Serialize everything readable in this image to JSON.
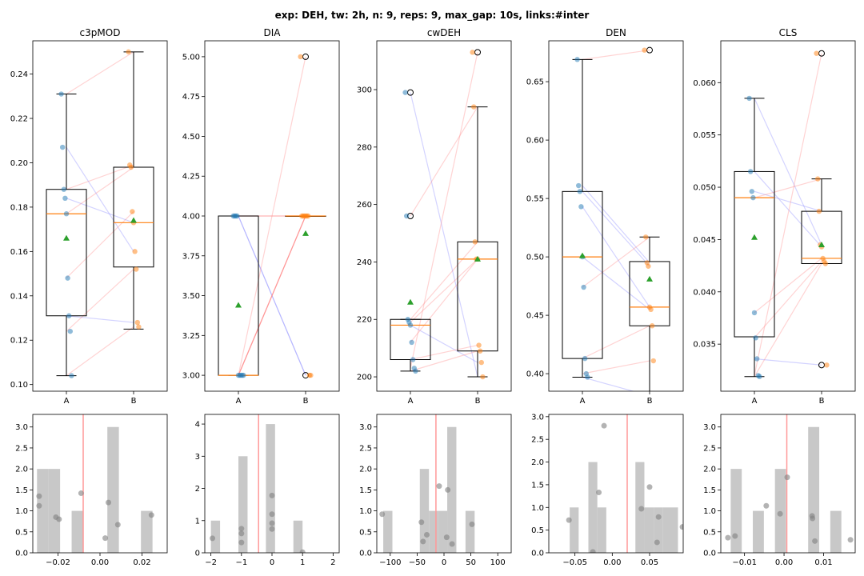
{
  "figure": {
    "suptitle": "exp: DEH, tw: 2h, n: 9, reps: 9, max_gap: 10s, links:#inter"
  },
  "colors": {
    "groupA": "#1f77b4",
    "groupB": "#ff7f0e",
    "median": "#ff7f0e",
    "mean": "#2ca02c",
    "link_up": "#ff8080",
    "link_down": "#8080ff",
    "hist": "#c8c8c8",
    "zero_line": "#ff9999",
    "dots": "#808080"
  },
  "chart_data": [
    {
      "type": "box",
      "title": "c3pMOD",
      "categories": [
        "A",
        "B"
      ],
      "ylim": [
        0.097,
        0.255
      ],
      "yticks": [
        0.1,
        0.12,
        0.14,
        0.16,
        0.18,
        0.2,
        0.22,
        0.24
      ],
      "ytick_labels": [
        "0.10",
        "0.12",
        "0.14",
        "0.16",
        "0.18",
        "0.20",
        "0.22",
        "0.24"
      ],
      "A": {
        "values": [
          0.231,
          0.207,
          0.188,
          0.184,
          0.177,
          0.148,
          0.131,
          0.124,
          0.104
        ],
        "whisker_low": 0.104,
        "q1": 0.131,
        "median": 0.177,
        "q3": 0.188,
        "whisker_high": 0.231,
        "mean": 0.166,
        "outliers": []
      },
      "B": {
        "values": [
          0.25,
          0.199,
          0.198,
          0.178,
          0.173,
          0.16,
          0.152,
          0.128,
          0.126
        ],
        "whisker_low": 0.125,
        "q1": 0.153,
        "median": 0.173,
        "q3": 0.198,
        "whisker_high": 0.25,
        "mean": 0.174,
        "outliers": []
      },
      "pairs": [
        [
          0.231,
          0.25
        ],
        [
          0.207,
          0.16
        ],
        [
          0.188,
          0.199
        ],
        [
          0.184,
          0.173
        ],
        [
          0.177,
          0.198
        ],
        [
          0.148,
          0.178
        ],
        [
          0.131,
          0.128
        ],
        [
          0.124,
          0.152
        ],
        [
          0.104,
          0.126
        ]
      ]
    },
    {
      "type": "box",
      "title": "DIA",
      "categories": [
        "A",
        "B"
      ],
      "ylim": [
        2.9,
        5.1
      ],
      "yticks": [
        3.0,
        3.25,
        3.5,
        3.75,
        4.0,
        4.25,
        4.5,
        4.75,
        5.0
      ],
      "ytick_labels": [
        "3.00",
        "3.25",
        "3.50",
        "3.75",
        "4.00",
        "4.25",
        "4.50",
        "4.75",
        "5.00"
      ],
      "A": {
        "values": [
          4,
          4,
          4,
          4,
          3,
          3,
          3,
          3,
          3
        ],
        "whisker_low": 3.0,
        "q1": 3.0,
        "median": 3.0,
        "q3": 4.0,
        "whisker_high": 4.0,
        "mean": 3.44,
        "outliers": []
      },
      "B": {
        "values": [
          5,
          4,
          4,
          4,
          4,
          4,
          4,
          3,
          3
        ],
        "whisker_low": 4.0,
        "q1": 4.0,
        "median": 4.0,
        "q3": 4.0,
        "whisker_high": 4.0,
        "mean": 3.89,
        "outliers": [
          5.0,
          3.0
        ]
      },
      "pairs": [
        [
          4,
          3
        ],
        [
          4,
          4
        ],
        [
          4,
          4
        ],
        [
          4,
          3
        ],
        [
          3,
          5
        ],
        [
          3,
          4
        ],
        [
          3,
          4
        ],
        [
          3,
          4
        ],
        [
          3,
          4
        ]
      ]
    },
    {
      "type": "box",
      "title": "cwDEH",
      "categories": [
        "A",
        "B"
      ],
      "ylim": [
        195,
        317
      ],
      "yticks": [
        200,
        220,
        240,
        260,
        280,
        300
      ],
      "ytick_labels": [
        "200",
        "220",
        "240",
        "260",
        "280",
        "300"
      ],
      "A": {
        "values": [
          299,
          256,
          220,
          219,
          218,
          212,
          206,
          203,
          202
        ],
        "whisker_low": 202,
        "q1": 206,
        "median": 218,
        "q3": 220,
        "whisker_high": 220,
        "mean": 226,
        "outliers": [
          299,
          256
        ]
      },
      "B": {
        "values": [
          313,
          294,
          247,
          241,
          241,
          211,
          209,
          205,
          200
        ],
        "whisker_low": 200,
        "q1": 209,
        "median": 241,
        "q3": 247,
        "whisker_high": 294,
        "mean": 241,
        "outliers": [
          313
        ]
      },
      "pairs": [
        [
          299,
          200
        ],
        [
          256,
          294
        ],
        [
          220,
          247
        ],
        [
          219,
          241
        ],
        [
          218,
          205
        ],
        [
          212,
          241
        ],
        [
          206,
          211
        ],
        [
          203,
          313
        ],
        [
          202,
          209
        ]
      ]
    },
    {
      "type": "box",
      "title": "DEN",
      "categories": [
        "A",
        "B"
      ],
      "ylim": [
        0.385,
        0.685
      ],
      "yticks": [
        0.4,
        0.45,
        0.5,
        0.55,
        0.6,
        0.65
      ],
      "ytick_labels": [
        "0.40",
        "0.45",
        "0.50",
        "0.55",
        "0.60",
        "0.65"
      ],
      "A": {
        "values": [
          0.669,
          0.561,
          0.556,
          0.543,
          0.5,
          0.474,
          0.413,
          0.4,
          0.397
        ],
        "whisker_low": 0.397,
        "q1": 0.413,
        "median": 0.5,
        "q3": 0.556,
        "whisker_high": 0.669,
        "mean": 0.501,
        "outliers": []
      },
      "B": {
        "values": [
          0.677,
          0.517,
          0.495,
          0.492,
          0.457,
          0.455,
          0.441,
          0.411,
          0.381
        ],
        "whisker_low": 0.381,
        "q1": 0.441,
        "median": 0.457,
        "q3": 0.496,
        "whisker_high": 0.517,
        "mean": 0.481,
        "outliers": [
          0.677
        ]
      },
      "pairs": [
        [
          0.669,
          0.677
        ],
        [
          0.561,
          0.495
        ],
        [
          0.556,
          0.492
        ],
        [
          0.543,
          0.457
        ],
        [
          0.5,
          0.455
        ],
        [
          0.474,
          0.517
        ],
        [
          0.413,
          0.441
        ],
        [
          0.4,
          0.411
        ],
        [
          0.397,
          0.381
        ]
      ]
    },
    {
      "type": "box",
      "title": "CLS",
      "categories": [
        "A",
        "B"
      ],
      "ylim": [
        0.0305,
        0.064
      ],
      "yticks": [
        0.035,
        0.04,
        0.045,
        0.05,
        0.055,
        0.06
      ],
      "ytick_labels": [
        "0.035",
        "0.040",
        "0.045",
        "0.050",
        "0.055",
        "0.060"
      ],
      "A": {
        "values": [
          0.0585,
          0.0515,
          0.0496,
          0.049,
          0.038,
          0.0356,
          0.0336,
          0.032,
          0.0319
        ],
        "whisker_low": 0.0319,
        "q1": 0.0357,
        "median": 0.049,
        "q3": 0.0515,
        "whisker_high": 0.0585,
        "mean": 0.0452,
        "outliers": []
      },
      "B": {
        "values": [
          0.0628,
          0.0508,
          0.0477,
          0.0445,
          0.0443,
          0.0432,
          0.0429,
          0.0427,
          0.033
        ],
        "whisker_low": 0.0427,
        "q1": 0.0427,
        "median": 0.0432,
        "q3": 0.0477,
        "whisker_high": 0.0508,
        "mean": 0.0445,
        "outliers": [
          0.0628,
          0.033
        ]
      },
      "pairs": [
        [
          0.0585,
          0.0445
        ],
        [
          0.0515,
          0.0443
        ],
        [
          0.0496,
          0.0477
        ],
        [
          0.049,
          0.0508
        ],
        [
          0.038,
          0.0432
        ],
        [
          0.0356,
          0.0429
        ],
        [
          0.0336,
          0.033
        ],
        [
          0.032,
          0.0628
        ],
        [
          0.0319,
          0.0427
        ]
      ]
    },
    {
      "type": "histogram",
      "title": "",
      "xlim": [
        -0.032,
        0.032
      ],
      "ylim": [
        0,
        3.3
      ],
      "vline": -0.008,
      "xticks": [
        -0.02,
        0.0,
        0.02
      ],
      "xtick_labels": [
        "−0.02",
        "0.00",
        "0.02"
      ],
      "yticks": [
        0,
        0.5,
        1.0,
        1.5,
        2.0,
        2.5,
        3.0
      ],
      "ytick_labels": [
        "0.0",
        "0.5",
        "1.0",
        "1.5",
        "2.0",
        "2.5",
        "3.0"
      ],
      "bins": [
        [
          -0.03,
          -0.0245,
          2
        ],
        [
          -0.0245,
          -0.019,
          2
        ],
        [
          -0.0135,
          -0.008,
          1
        ],
        [
          0.0035,
          0.009,
          3
        ],
        [
          0.0195,
          0.025,
          1
        ]
      ],
      "points": [
        [
          -0.029,
          1.35
        ],
        [
          -0.029,
          1.12
        ],
        [
          -0.021,
          0.85
        ],
        [
          -0.0195,
          0.8
        ],
        [
          -0.009,
          1.42
        ],
        [
          0.0025,
          0.35
        ],
        [
          0.004,
          1.2
        ],
        [
          0.0085,
          0.67
        ],
        [
          0.0245,
          0.9
        ]
      ]
    },
    {
      "type": "histogram",
      "title": "",
      "xlim": [
        -2.2,
        2.2
      ],
      "ylim": [
        0,
        4.3
      ],
      "vline": -0.44,
      "xticks": [
        -2,
        -1,
        0,
        1,
        2
      ],
      "xtick_labels": [
        "−2",
        "−1",
        "0",
        "1",
        "2"
      ],
      "yticks": [
        0,
        1,
        2,
        3,
        4
      ],
      "ytick_labels": [
        "0",
        "1",
        "2",
        "3",
        "4"
      ],
      "bins": [
        [
          -2.0,
          -1.7,
          1
        ],
        [
          -1.1,
          -0.8,
          3
        ],
        [
          -0.2,
          0.1,
          4
        ],
        [
          0.7,
          1.0,
          1
        ]
      ],
      "points": [
        [
          -1.95,
          0.45
        ],
        [
          -1.0,
          0.75
        ],
        [
          -1.0,
          0.6
        ],
        [
          -1.0,
          0.32
        ],
        [
          0.0,
          1.78
        ],
        [
          0.0,
          1.2
        ],
        [
          0.0,
          0.92
        ],
        [
          0.0,
          0.74
        ],
        [
          1.0,
          0.02
        ]
      ]
    },
    {
      "type": "histogram",
      "title": "",
      "xlim": [
        -125,
        125
      ],
      "ylim": [
        0,
        3.3
      ],
      "vline": -15,
      "xticks": [
        -100,
        -50,
        0,
        50,
        100
      ],
      "xtick_labels": [
        "−100",
        "−50",
        "0",
        "50",
        "100"
      ],
      "yticks": [
        0,
        0.5,
        1.0,
        1.5,
        2.0,
        2.5,
        3.0
      ],
      "ytick_labels": [
        "0.0",
        "0.5",
        "1.0",
        "1.5",
        "2.0",
        "2.5",
        "3.0"
      ],
      "bins": [
        [
          -113,
          -96,
          1
        ],
        [
          -45,
          -28,
          2
        ],
        [
          -28,
          -11,
          1
        ],
        [
          -11,
          6,
          1
        ],
        [
          6,
          23,
          3
        ],
        [
          40,
          57,
          1
        ]
      ],
      "points": [
        [
          -115,
          0.92
        ],
        [
          -42,
          0.73
        ],
        [
          -39,
          0.27
        ],
        [
          -32,
          0.43
        ],
        [
          -9,
          1.59
        ],
        [
          7,
          1.5
        ],
        [
          5,
          0.37
        ],
        [
          15,
          0.21
        ],
        [
          52,
          0.68
        ]
      ]
    },
    {
      "type": "histogram",
      "title": "",
      "xlim": [
        -0.085,
        0.095
      ],
      "ylim": [
        0,
        3.05
      ],
      "vline": 0.02,
      "xticks": [
        -0.05,
        0.0,
        0.05
      ],
      "xtick_labels": [
        "−0.05",
        "0.00",
        "0.05"
      ],
      "yticks": [
        0,
        0.5,
        1.0,
        1.5,
        2.0,
        2.5,
        3.0
      ],
      "ytick_labels": [
        "0.0",
        "0.5",
        "1.0",
        "1.5",
        "2.0",
        "2.5",
        "3.0"
      ],
      "bins": [
        [
          -0.057,
          -0.045,
          1
        ],
        [
          -0.032,
          -0.02,
          2
        ],
        [
          -0.02,
          -0.008,
          1
        ],
        [
          0.031,
          0.043,
          2
        ],
        [
          0.043,
          0.056,
          1
        ],
        [
          0.056,
          0.068,
          1
        ],
        [
          0.068,
          0.08,
          1
        ],
        [
          0.08,
          0.088,
          1
        ]
      ],
      "points": [
        [
          -0.058,
          0.72
        ],
        [
          -0.026,
          0.02
        ],
        [
          -0.018,
          1.33
        ],
        [
          -0.011,
          2.8
        ],
        [
          0.039,
          0.97
        ],
        [
          0.05,
          1.45
        ],
        [
          0.06,
          0.23
        ],
        [
          0.062,
          0.79
        ],
        [
          0.094,
          0.57
        ]
      ]
    },
    {
      "type": "histogram",
      "title": "",
      "xlim": [
        -0.016,
        0.018
      ],
      "ylim": [
        0,
        3.3
      ],
      "vline": 0.0007,
      "xticks": [
        -0.01,
        0.0,
        0.01
      ],
      "xtick_labels": [
        "−0.01",
        "0.00",
        "0.01"
      ],
      "yticks": [
        0,
        0.5,
        1.0,
        1.5,
        2.0,
        2.5,
        3.0
      ],
      "ytick_labels": [
        "0.0",
        "0.5",
        "1.0",
        "1.5",
        "2.0",
        "2.5",
        "3.0"
      ],
      "bins": [
        [
          -0.0135,
          -0.0107,
          2
        ],
        [
          -0.0079,
          -0.0051,
          1
        ],
        [
          -0.0023,
          0.0005,
          2
        ],
        [
          0.0061,
          0.0089,
          3
        ],
        [
          0.0117,
          0.0145,
          1
        ]
      ],
      "points": [
        [
          -0.0142,
          0.36
        ],
        [
          -0.0124,
          0.4
        ],
        [
          -0.0045,
          1.12
        ],
        [
          -0.001,
          0.93
        ],
        [
          0.0008,
          1.8
        ],
        [
          0.0071,
          0.88
        ],
        [
          0.0072,
          0.82
        ],
        [
          0.0078,
          0.28
        ],
        [
          0.0168,
          0.31
        ]
      ]
    }
  ]
}
